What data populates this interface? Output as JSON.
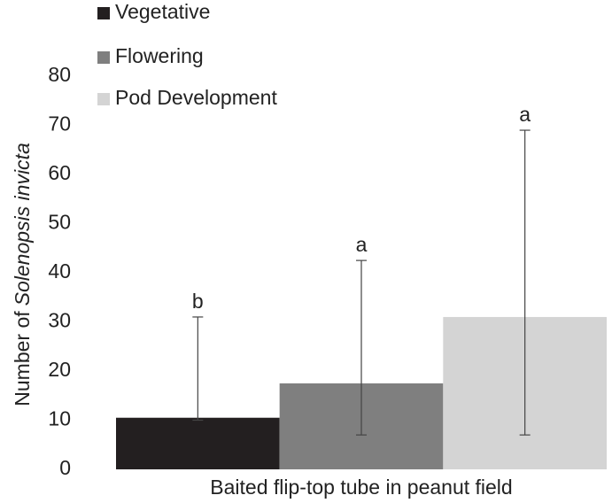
{
  "chart_data": {
    "type": "bar",
    "categories": [
      "Baited flip-top tube in peanut field"
    ],
    "xlabel": "Baited flip-top tube in peanut field",
    "ylabel_parts": [
      {
        "text": "Number of",
        "italic": false
      },
      {
        "text": "Solenopsis invicta",
        "italic": true
      }
    ],
    "ylim": [
      0,
      80
    ],
    "yticks": [
      0,
      10,
      20,
      30,
      40,
      50,
      60,
      70,
      80
    ],
    "grid": false,
    "legend": "top-left",
    "series": [
      {
        "name": "Vegetative",
        "color": "#231f20",
        "values": [
          10.5
        ],
        "lower": [
          10
        ],
        "upper": [
          31
        ],
        "letters": [
          "b"
        ]
      },
      {
        "name": "Flowering",
        "color": "#7f7f7f",
        "values": [
          17.5
        ],
        "lower": [
          7
        ],
        "upper": [
          42.5
        ],
        "letters": [
          "a"
        ]
      },
      {
        "name": "Pod Development",
        "color": "#d4d4d4",
        "values": [
          31
        ],
        "lower": [
          7
        ],
        "upper": [
          69
        ],
        "letters": [
          "a"
        ]
      }
    ]
  }
}
